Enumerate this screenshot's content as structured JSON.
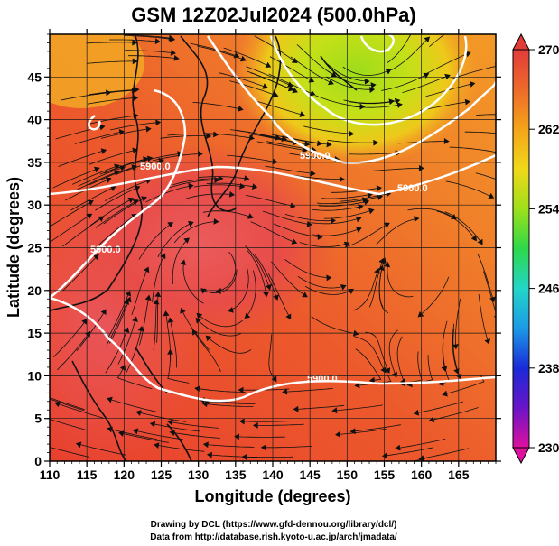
{
  "chart_data": {
    "type": "heatmap",
    "title": "GSM 12Z02Jul2024 (500.0hPa)",
    "xlabel": "Longitude (degrees)",
    "ylabel": "Latitude  (degrees)",
    "xlim": [
      110,
      170
    ],
    "ylim": [
      0,
      50
    ],
    "xticks": [
      110,
      115,
      120,
      125,
      130,
      135,
      140,
      145,
      150,
      155,
      160,
      165
    ],
    "yticks": [
      0,
      5,
      10,
      15,
      20,
      25,
      30,
      35,
      40,
      45
    ],
    "colorbar": {
      "range": [
        230,
        270
      ],
      "ticks": [
        230,
        238,
        246,
        254,
        262,
        270
      ],
      "colors": [
        "#e0109e",
        "#6a14c8",
        "#1a2ad8",
        "#1c9ae6",
        "#22d6c8",
        "#2ed84a",
        "#9ee01a",
        "#f0d81a",
        "#f4a41a",
        "#ee6a2a",
        "#e23c3a"
      ]
    },
    "contours": [
      {
        "label": "5900.0",
        "level": 5900.0
      },
      {
        "label": "5900.0",
        "level": 5900.0
      },
      {
        "label": "5900.0",
        "level": 5900.0
      },
      {
        "label": "5900.0",
        "level": 5900.0
      },
      {
        "label": "5900.0",
        "level": 5900.0
      }
    ],
    "grid": true
  },
  "credits": {
    "line1": "Drawing by DCL (https://www.gfd-dennou.org/library/dcl/)",
    "line2": "Data from http://database.rish.kyoto-u.ac.jp/arch/jmadata/"
  }
}
